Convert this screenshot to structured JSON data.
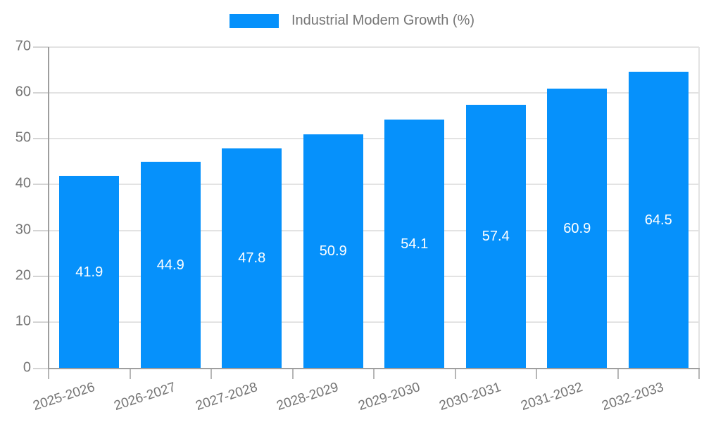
{
  "legend": {
    "label": "Industrial Modem Growth (%)"
  },
  "chart_data": {
    "type": "bar",
    "title": "Industrial Modem Growth (%)",
    "categories": [
      "2025-2026",
      "2026-2027",
      "2027-2028",
      "2028-2029",
      "2029-2030",
      "2030-2031",
      "2031-2032",
      "2032-2033"
    ],
    "values": [
      41.9,
      44.9,
      47.8,
      50.9,
      54.1,
      57.4,
      60.9,
      64.5
    ],
    "xlabel": "",
    "ylabel": "",
    "ylim": [
      0,
      70
    ],
    "yticks": [
      0,
      10,
      20,
      30,
      40,
      50,
      60,
      70
    ],
    "grid": true,
    "legend_position": "top-center",
    "value_labels": "inside-middle",
    "colors": {
      "bar": "#0691fb",
      "value_label": "#ffffff",
      "tick_label": "#757575",
      "axis": "#9e9e9e",
      "grid": "#e3e3e3",
      "x_tick": "#b6b6b6",
      "y_tick": "#d4d4d4",
      "background": "#ffffff"
    }
  }
}
